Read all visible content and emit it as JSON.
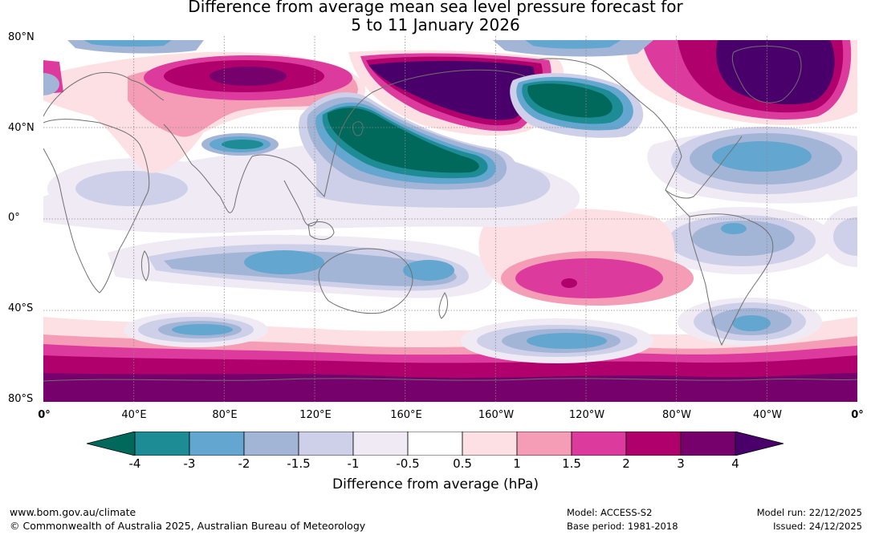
{
  "title": {
    "line1": "Difference from average mean sea level pressure forecast for",
    "line2": "5 to 11 January 2026"
  },
  "lat_labels": [
    "80°N",
    "40°N",
    "0°",
    "40°S",
    "80°S"
  ],
  "lon_labels": [
    "0°",
    "40°E",
    "80°E",
    "120°E",
    "160°E",
    "160°W",
    "120°W",
    "80°W",
    "40°W",
    "0°"
  ],
  "legend": {
    "title": "Difference from average (hPa)",
    "ticks": [
      "-4",
      "-3",
      "-2",
      "-1.5",
      "-1",
      "-0.5",
      "0.5",
      "1",
      "1.5",
      "2",
      "3",
      "4"
    ],
    "colors": {
      "below_min": "#00695c",
      "bins": [
        "#1e8c95",
        "#63a6d0",
        "#a3b5d6",
        "#cdd0e8",
        "#efeaf4",
        "#ffffff",
        "#fde0e3",
        "#f59db6",
        "#dc3a9c",
        "#b0006c",
        "#76006c"
      ],
      "above_max": "#4a006b"
    }
  },
  "footer": {
    "website": "www.bom.gov.au/climate",
    "copyright": "© Commonwealth of Australia 2025, Australian Bureau of Meteorology",
    "model": "Model: ACCESS-S2",
    "base_period": "Base period: 1981-2018",
    "model_run": "Model run: 22/12/2025",
    "issued": "Issued: 24/12/2025"
  },
  "anomaly_features": [
    {
      "name": "arctic-europe-high",
      "category": 3
    },
    {
      "name": "north-pacific-high",
      "category": 4
    },
    {
      "name": "greenland-high",
      "category": 4
    },
    {
      "name": "northwest-pacific-low",
      "category": -4
    },
    {
      "name": "alaska-low",
      "category": -4
    },
    {
      "name": "central-asia-low",
      "category": -3
    },
    {
      "name": "north-atlantic-low",
      "category": -2
    },
    {
      "name": "south-pacific-high",
      "category": 2
    },
    {
      "name": "southern-ocean-high-belt",
      "category": 3
    },
    {
      "name": "australia-low",
      "category": -2
    },
    {
      "name": "south-atlantic-low",
      "category": -2
    }
  ]
}
